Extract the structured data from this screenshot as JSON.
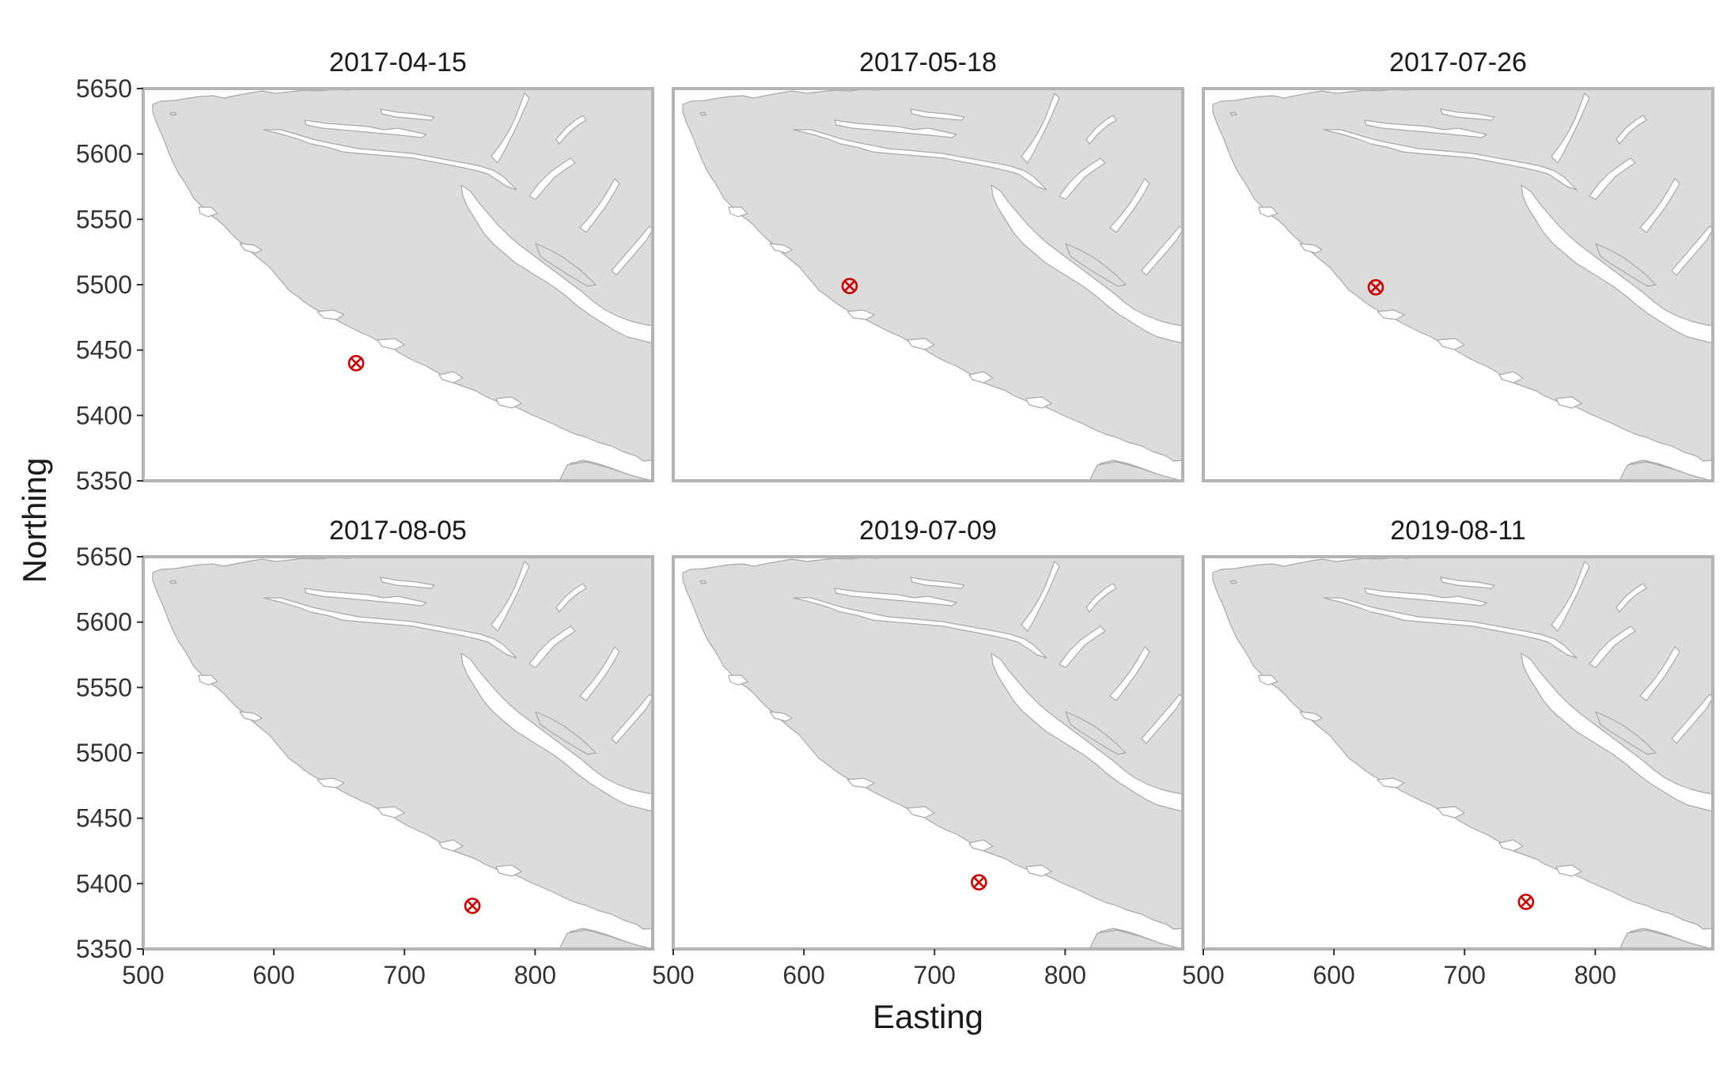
{
  "figure": {
    "x_axis_title": "Easting",
    "y_axis_title": "Northing",
    "x_range": [
      500,
      890
    ],
    "y_range": [
      5350,
      5650
    ],
    "x_ticks": [
      "500",
      "600",
      "700",
      "800"
    ],
    "y_ticks": [
      "5650",
      "5600",
      "5550",
      "5500",
      "5450",
      "5400",
      "5350"
    ],
    "grid": false,
    "land_color": "#dcdcdc",
    "marker_color": "#cc0000",
    "marker_icon": "circle-cross-icon"
  },
  "panels": [
    {
      "date": "2017-04-15",
      "easting": 663,
      "northing": 5440
    },
    {
      "date": "2017-05-18",
      "easting": 635,
      "northing": 5499
    },
    {
      "date": "2017-07-26",
      "easting": 632,
      "northing": 5498
    },
    {
      "date": "2017-08-05",
      "easting": 752,
      "northing": 5383
    },
    {
      "date": "2019-07-09",
      "easting": 734,
      "northing": 5401
    },
    {
      "date": "2019-08-11",
      "easting": 747,
      "northing": 5386
    }
  ]
}
